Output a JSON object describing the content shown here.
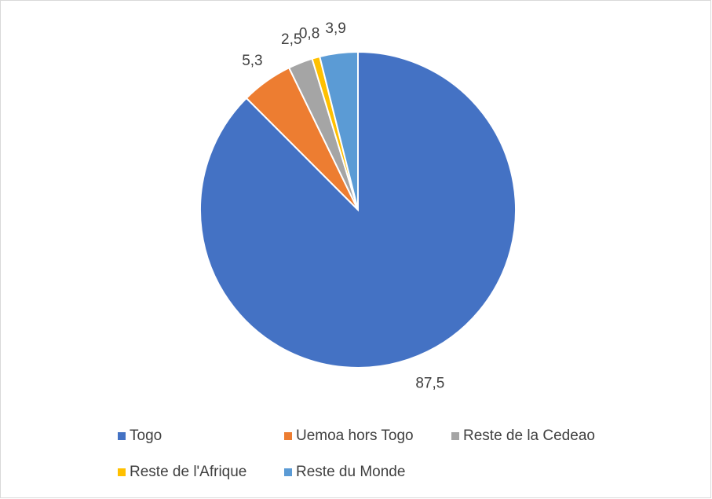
{
  "chart_data": {
    "type": "pie",
    "categories": [
      "Togo",
      "Uemoa hors Togo",
      "Reste de la Cedeao",
      "Reste de l'Afrique",
      "Reste du Monde"
    ],
    "values": [
      87.5,
      5.3,
      2.5,
      0.8,
      3.9
    ],
    "value_labels": [
      "87,5",
      "5,3",
      "2,5",
      "0,8",
      "3,9"
    ],
    "colors": [
      "#4472c4",
      "#ed7d31",
      "#a5a5a5",
      "#ffc000",
      "#5b9bd5"
    ],
    "legend": "bottom"
  }
}
